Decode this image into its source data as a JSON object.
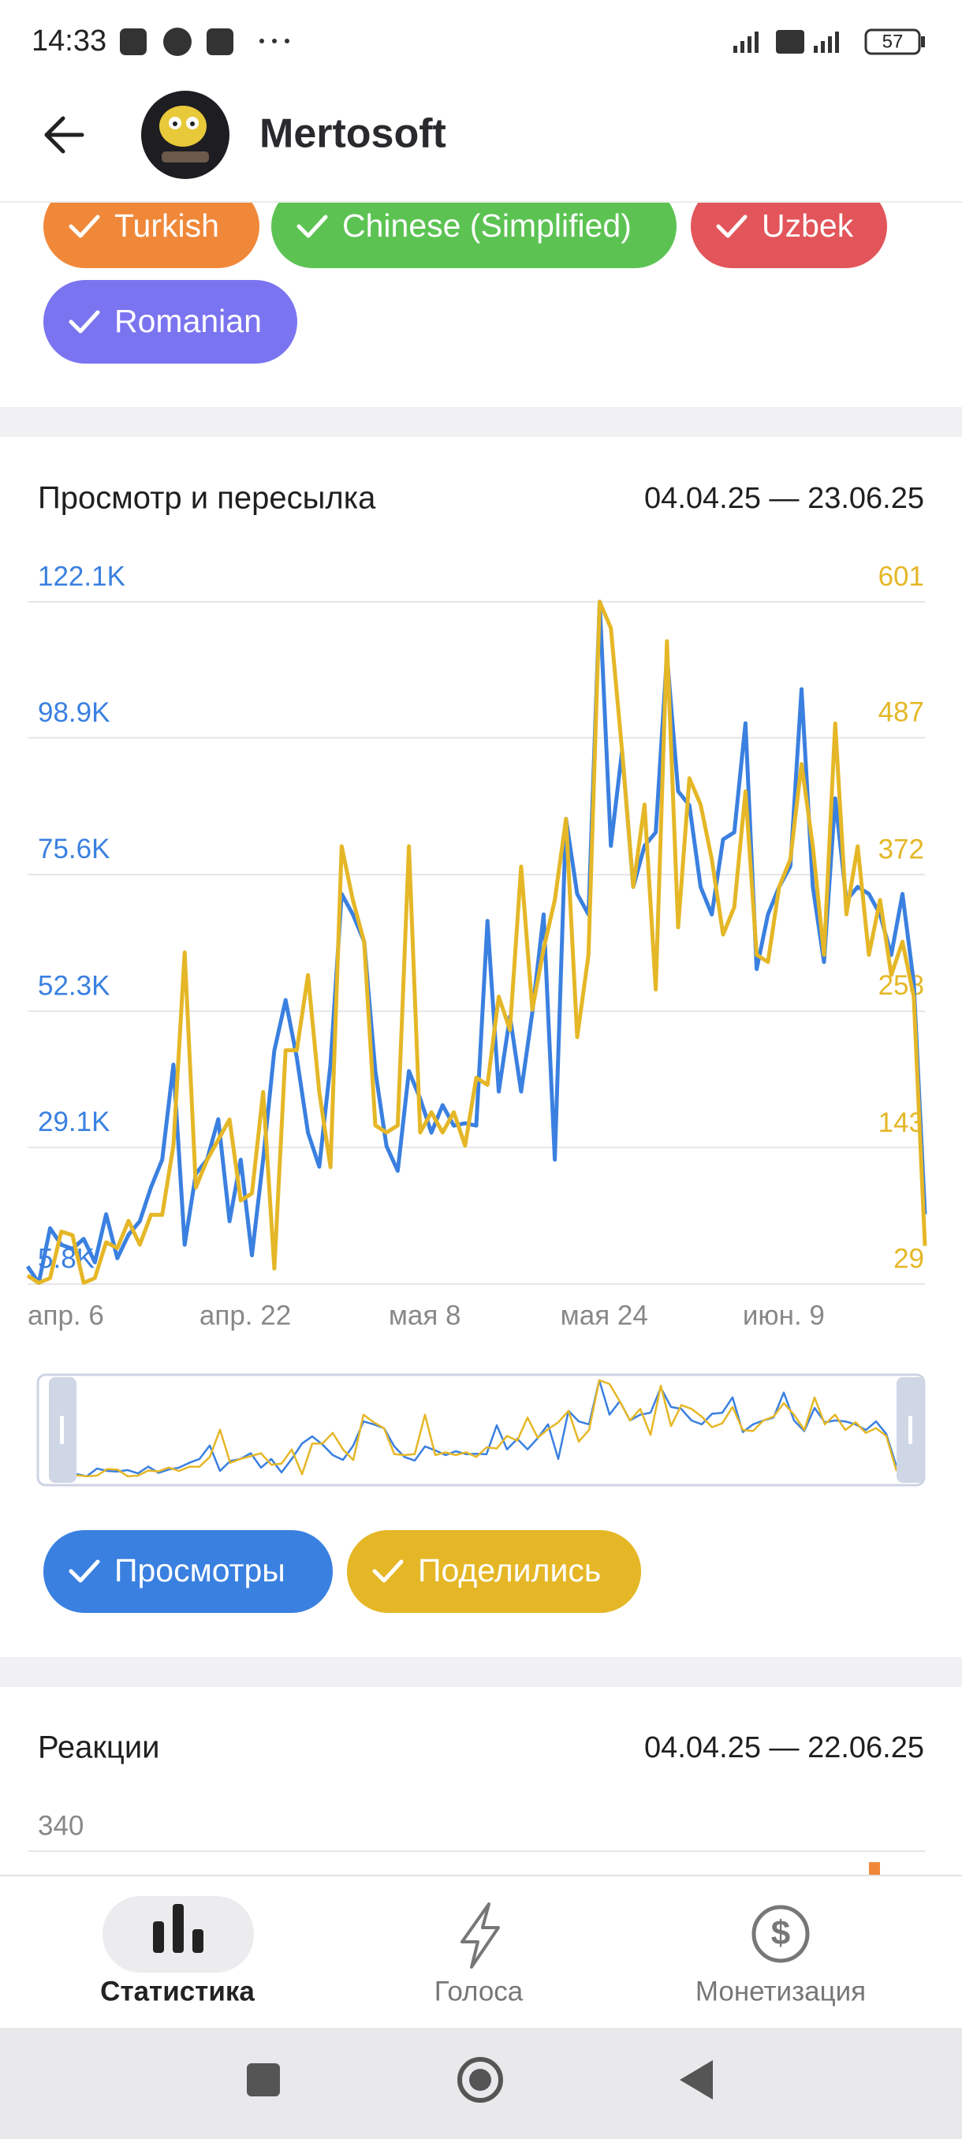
{
  "status_bar": {
    "time": "14:33",
    "battery": "57"
  },
  "header": {
    "title": "Mertosoft"
  },
  "language_chips": [
    {
      "label": "Turkish",
      "color": "#f0883a"
    },
    {
      "label": "Chinese (Simplified)",
      "color": "#5cc353"
    },
    {
      "label": "Uzbek",
      "color": "#e2555a"
    },
    {
      "label": "Romanian",
      "color": "#7b74f0"
    }
  ],
  "views_card": {
    "title": "Просмотр и пересылка",
    "date_range": "04.04.25 — 23.06.25",
    "chart_data": {
      "type": "line",
      "categories": [
        null,
        null,
        "апр. 6",
        null,
        null,
        null,
        null,
        null,
        null,
        null,
        null,
        null,
        null,
        null,
        null,
        null,
        null,
        null,
        "апр. 22",
        null,
        null,
        null,
        null,
        null,
        null,
        null,
        null,
        null,
        null,
        null,
        null,
        null,
        null,
        null,
        "мая 8",
        null,
        null,
        null,
        null,
        null,
        null,
        null,
        null,
        null,
        null,
        null,
        null,
        null,
        null,
        null,
        "мая 24",
        null,
        null,
        null,
        null,
        null,
        null,
        null,
        null,
        null,
        null,
        null,
        null,
        null,
        null,
        null,
        "июн. 9",
        null,
        null,
        null,
        null,
        null,
        null,
        null,
        null,
        null,
        null,
        null,
        null,
        null,
        null
      ],
      "series": [
        {
          "name": "Просмотры",
          "color": "#3a80e0",
          "axis": "y",
          "values": [
            8800,
            6000,
            15300,
            12500,
            11800,
            13500,
            9500,
            17700,
            10200,
            14200,
            16500,
            22300,
            27000,
            43200,
            12500,
            24600,
            27000,
            33900,
            16500,
            27000,
            10700,
            27000,
            45600,
            54200,
            44400,
            31600,
            25800,
            43200,
            72300,
            68800,
            64200,
            42100,
            29300,
            25100,
            42100,
            37400,
            31600,
            36300,
            32800,
            33200,
            32800,
            67700,
            38600,
            51400,
            38600,
            52100,
            68800,
            27000,
            85100,
            72300,
            68800,
            122100,
            80500,
            96700,
            73500,
            80500,
            82800,
            113000,
            89800,
            87400,
            73500,
            68800,
            81600,
            82800,
            101400,
            59500,
            68800,
            73500,
            77000,
            107200,
            73500,
            60700,
            88600,
            71200,
            73500,
            72300,
            68800,
            61900,
            72300,
            57200,
            17700
          ]
        },
        {
          "name": "Поделились",
          "color": "#e5b727",
          "axis": "y2",
          "values": [
            36,
            30,
            34,
            73,
            70,
            30,
            34,
            64,
            59,
            82,
            62,
            87,
            87,
            145,
            307,
            110,
            133,
            150,
            167,
            99,
            105,
            190,
            42,
            225,
            225,
            288,
            190,
            127,
            396,
            351,
            316,
            162,
            156,
            162,
            396,
            156,
            173,
            156,
            173,
            145,
            202,
            196,
            270,
            242,
            379,
            259,
            310,
            351,
            419,
            236,
            305,
            601,
            579,
            476,
            362,
            431,
            276,
            568,
            328,
            453,
            431,
            385,
            322,
            345,
            442,
            305,
            299,
            362,
            385,
            465,
            396,
            305,
            499,
            339,
            396,
            305,
            351,
            288,
            316,
            270,
            61
          ]
        }
      ],
      "ylim": [
        5800,
        122100
      ],
      "yticks": [
        {
          "value": 5800,
          "label": "5.8K"
        },
        {
          "value": 29100,
          "label": "29.1K"
        },
        {
          "value": 52300,
          "label": "52.3K"
        },
        {
          "value": 75600,
          "label": "75.6K"
        },
        {
          "value": 98900,
          "label": "98.9K"
        },
        {
          "value": 122100,
          "label": "122.1K"
        }
      ],
      "y2lim": [
        29,
        601
      ],
      "y2ticks": [
        29,
        143,
        258,
        372,
        487,
        601
      ],
      "grid": true
    }
  },
  "reactions_card": {
    "title": "Реакции",
    "date_range": "04.04.25 — 22.06.25",
    "chart_data": {
      "type": "bar",
      "yticks": [
        340
      ],
      "grid": true
    }
  },
  "bottom_nav": [
    {
      "label": "Статистика",
      "active": true
    },
    {
      "label": "Голоса",
      "active": false
    },
    {
      "label": "Монетизация",
      "active": false
    }
  ]
}
